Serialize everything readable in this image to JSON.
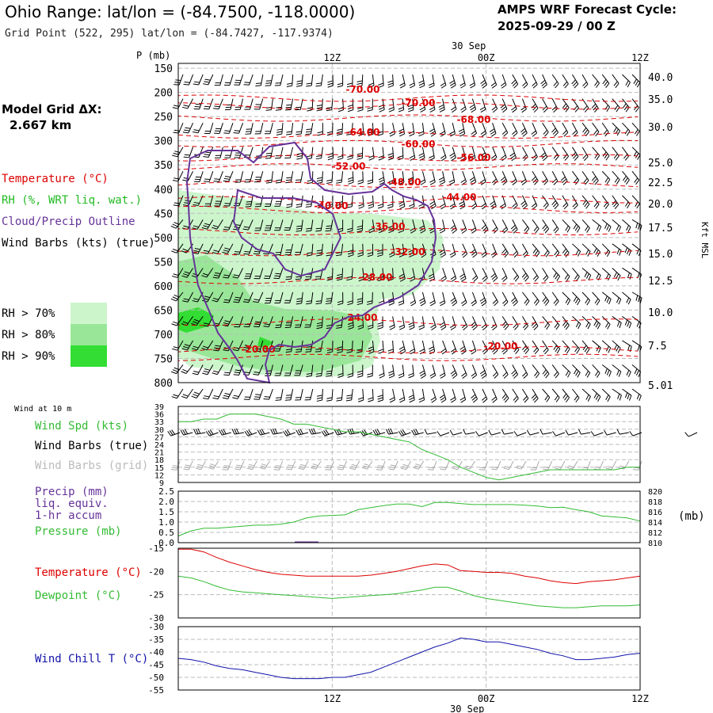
{
  "header": {
    "title": "Ohio Range:  lat/lon = (-84.7500, -118.0000)",
    "grid_point": "Grid Point (522, 295) lat/lon = (-84.7427, -117.9374)",
    "cycle_label": "AMPS WRF Forecast Cycle:",
    "cycle_value": "2025-09-29 / 00  Z"
  },
  "left_panel": {
    "model_grid_label": "Model Grid ΔX:",
    "model_grid_value": "2.667 km",
    "temperature": "Temperature (°C)",
    "rh": "RH (%, WRT liq. wat.)",
    "cloud": "Cloud/Precip Outline",
    "wind_barbs": "Wind Barbs (kts) (true)",
    "rh70": "RH > 70%",
    "rh80": "RH > 80%",
    "rh90": "RH > 90%"
  },
  "time_axis": {
    "top_date": "30 Sep",
    "bottom_date": "30 Sep",
    "ticks": [
      "12Z",
      "00Z",
      "12Z"
    ]
  },
  "colors": {
    "temperature": "#dd0000",
    "rh": "#22bb22",
    "cloud": "#663399",
    "wind_speed": "#33bb33",
    "precip": "#663399",
    "wind_chill": "#1111aa",
    "rh70": "#ccf5cc",
    "rh80": "#99e699",
    "rh90": "#33dd33"
  },
  "chart_data": [
    {
      "type": "line",
      "name": "cross-section",
      "y_axis_left_label": "P (mb)",
      "y_axis_right_label": "Kft MSL",
      "pressure_levels": [
        "150",
        "200",
        "250",
        "300",
        "350",
        "400",
        "450",
        "500",
        "550",
        "600",
        "650",
        "700",
        "750",
        "800"
      ],
      "height_labels": [
        "40.0",
        "35.0",
        "30.0",
        "25.0",
        "22.5",
        "20.0",
        "17.5",
        "15.0",
        "12.5",
        "10.0",
        "7.5",
        "5.01"
      ],
      "ylim_mb": [
        800,
        150
      ],
      "x_hours": [
        0,
        36
      ],
      "isotherms": [
        {
          "label": "-70.00",
          "p": 212
        },
        {
          "label": "-70.00",
          "p": 228
        },
        {
          "label": "-68.00",
          "p": 253
        },
        {
          "label": "-64.00",
          "p": 288
        },
        {
          "label": "-60.00",
          "p": 306
        },
        {
          "label": "-56.00",
          "p": 335
        },
        {
          "label": "-52.00",
          "p": 354
        },
        {
          "label": "-48.00",
          "p": 390
        },
        {
          "label": "-44.00",
          "p": 422
        },
        {
          "label": "-40.00",
          "p": 442
        },
        {
          "label": "-36.00",
          "p": 488
        },
        {
          "label": "-32.00",
          "p": 531
        },
        {
          "label": "-28.00",
          "p": 589
        },
        {
          "label": "-24.00",
          "p": 675
        },
        {
          "label": "-20.00",
          "p": 748
        },
        {
          "label": "-20.00",
          "p": 732
        }
      ]
    },
    {
      "type": "line",
      "name": "wind-10m",
      "title": "Wind at 10 m",
      "series_labels": [
        "Wind Spd (kts)",
        "Wind Barbs (true)",
        "Wind Barbs (grid)"
      ],
      "yticks": [
        "39",
        "36",
        "33",
        "30",
        "27",
        "24",
        "21",
        "18",
        "15",
        "12",
        "9"
      ],
      "ylim": [
        9,
        39
      ],
      "x_hours": [
        0,
        1,
        2,
        3,
        4,
        5,
        6,
        7,
        8,
        9,
        10,
        11,
        12,
        13,
        14,
        15,
        16,
        17,
        18,
        19,
        20,
        21,
        22,
        23,
        24,
        25,
        26,
        27,
        28,
        29,
        30,
        31,
        32,
        33,
        34,
        35,
        36
      ],
      "wind_speed": [
        33,
        33,
        34,
        34,
        36,
        36,
        36,
        35,
        34,
        32,
        32,
        31,
        30,
        29,
        29,
        28,
        27,
        26,
        25,
        22,
        20,
        18,
        15,
        13,
        11,
        10,
        11,
        12,
        13,
        14,
        14,
        14,
        14,
        14,
        14,
        15,
        15
      ]
    },
    {
      "type": "line",
      "name": "precip-pressure",
      "left_labels": [
        "Precip (mm)",
        "liq. equiv.",
        "1-hr accum",
        "Pressure (mb)"
      ],
      "left_ticks": [
        "2.5",
        "2.0",
        "1.5",
        "1.0",
        "0.5",
        "0.0"
      ],
      "right_ticks": [
        "820",
        "818",
        "816",
        "814",
        "812",
        "810"
      ],
      "right_unit": "(mb)",
      "ylim_left": [
        0,
        2.5
      ],
      "ylim_right": [
        810,
        820
      ],
      "x_hours": [
        0,
        1,
        2,
        3,
        4,
        5,
        6,
        7,
        8,
        9,
        10,
        11,
        12,
        13,
        14,
        15,
        16,
        17,
        18,
        19,
        20,
        21,
        22,
        23,
        24,
        25,
        26,
        27,
        28,
        29,
        30,
        31,
        32,
        33,
        34,
        35,
        36
      ],
      "pressure": [
        811.3,
        812.3,
        812.8,
        812.8,
        813.0,
        813.2,
        813.4,
        813.4,
        813.6,
        814.0,
        814.8,
        815.2,
        815.3,
        815.4,
        816.4,
        816.8,
        817.2,
        817.5,
        817.5,
        817.0,
        817.8,
        817.8,
        817.6,
        817.4,
        817.4,
        817.4,
        817.4,
        817.3,
        817.1,
        816.8,
        816.9,
        816.4,
        816.0,
        815.2,
        815.0,
        814.8,
        814.2
      ],
      "precip": [
        0,
        0,
        0,
        0,
        0,
        0,
        0,
        0,
        0,
        0,
        0.02,
        0,
        0,
        0,
        0,
        0,
        0,
        0,
        0,
        0,
        0,
        0,
        0,
        0,
        0,
        0,
        0,
        0,
        0,
        0,
        0,
        0,
        0,
        0,
        0,
        0,
        0
      ]
    },
    {
      "type": "line",
      "name": "temp-dewpoint",
      "series_labels": [
        "Temperature (°C)",
        "Dewpoint (°C)"
      ],
      "yticks": [
        "-15",
        "-20",
        "-25",
        "-30"
      ],
      "ylim": [
        -30,
        -15
      ],
      "x_hours": [
        0,
        1,
        2,
        3,
        4,
        5,
        6,
        7,
        8,
        9,
        10,
        11,
        12,
        13,
        14,
        15,
        16,
        17,
        18,
        19,
        20,
        21,
        22,
        23,
        24,
        25,
        26,
        27,
        28,
        29,
        30,
        31,
        32,
        33,
        34,
        35,
        36
      ],
      "temperature": [
        -15.2,
        -15.2,
        -15.8,
        -17.0,
        -18.0,
        -18.8,
        -19.6,
        -20.2,
        -20.6,
        -20.8,
        -21.0,
        -21.0,
        -21.0,
        -21.0,
        -21.0,
        -20.8,
        -20.4,
        -20.0,
        -19.4,
        -18.8,
        -18.4,
        -18.6,
        -19.8,
        -20.0,
        -20.2,
        -20.2,
        -20.4,
        -21.0,
        -21.4,
        -22.0,
        -22.4,
        -22.6,
        -22.2,
        -22.0,
        -21.8,
        -21.4,
        -21.0
      ],
      "dewpoint": [
        -21.0,
        -21.4,
        -22.2,
        -23.2,
        -24.0,
        -24.4,
        -24.6,
        -24.8,
        -25.0,
        -25.2,
        -25.4,
        -25.6,
        -25.8,
        -25.6,
        -25.4,
        -25.2,
        -25.0,
        -24.8,
        -24.4,
        -24.0,
        -23.4,
        -23.4,
        -24.2,
        -25.2,
        -25.8,
        -26.2,
        -26.6,
        -27.0,
        -27.4,
        -27.6,
        -27.8,
        -27.8,
        -27.6,
        -27.4,
        -27.4,
        -27.4,
        -27.2
      ]
    },
    {
      "type": "line",
      "name": "wind-chill",
      "series_labels": [
        "Wind Chill T (°C)"
      ],
      "yticks": [
        "-30",
        "-35",
        "-40",
        "-45",
        "-50",
        "-55"
      ],
      "ylim": [
        -55,
        -30
      ],
      "x_hours": [
        0,
        1,
        2,
        3,
        4,
        5,
        6,
        7,
        8,
        9,
        10,
        11,
        12,
        13,
        14,
        15,
        16,
        17,
        18,
        19,
        20,
        21,
        22,
        23,
        24,
        25,
        26,
        27,
        28,
        29,
        30,
        31,
        32,
        33,
        34,
        35,
        36
      ],
      "wind_chill": [
        -42.5,
        -43.0,
        -44.0,
        -45.5,
        -46.5,
        -47.0,
        -48.0,
        -49.0,
        -50.0,
        -50.5,
        -50.5,
        -50.5,
        -50.0,
        -50.0,
        -49.0,
        -48.0,
        -46.0,
        -44.0,
        -42.0,
        -40.0,
        -38.0,
        -36.5,
        -34.5,
        -35.0,
        -36.0,
        -36.0,
        -37.0,
        -38.0,
        -39.0,
        -40.5,
        -41.5,
        -43.0,
        -43.0,
        -42.5,
        -42.0,
        -41.0,
        -40.5
      ]
    }
  ]
}
